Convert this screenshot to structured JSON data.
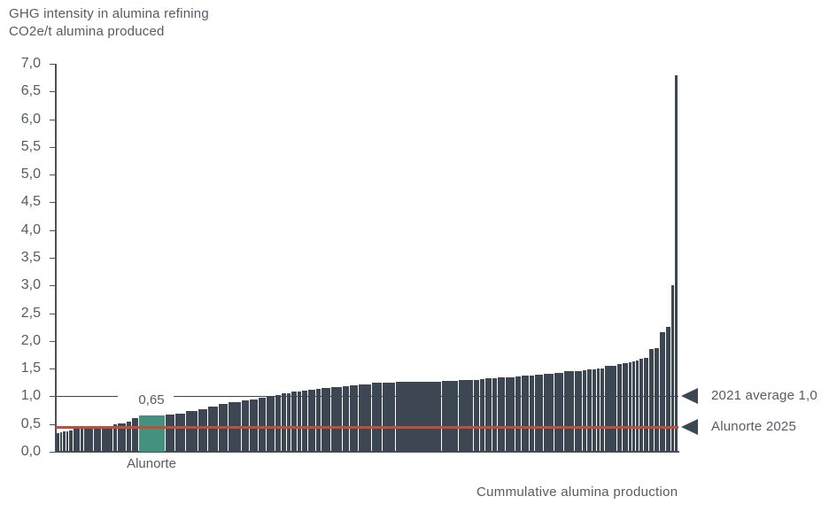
{
  "title": {
    "line1": "GHG intensity in alumina refining",
    "line2": "CO2e/t alumina produced"
  },
  "x_axis_label": "Cummulative alumina production",
  "y_axis": {
    "ticks": [
      "7,0",
      "6,5",
      "6,0",
      "5,5",
      "5,0",
      "4,5",
      "4,0",
      "3,5",
      "3,0",
      "2,5",
      "2,0",
      "1,5",
      "1,0",
      "0,5",
      "0,0"
    ]
  },
  "annotations": {
    "highlight_value_label": "0,65",
    "highlight_name_label": "Alunorte",
    "average_line_label": "2021 average 1,0",
    "alunorte_2025_label": "Alunorte 2025"
  },
  "colors": {
    "bar": "#3d4753",
    "highlight_bar": "#45917f",
    "average_line": "#3d4753",
    "alunorte_2025_line": "#bf4f38",
    "axis": "#4a515b",
    "text": "#565b63"
  },
  "layout_hints": {
    "average_line_label_gap": [
      70,
      133
    ],
    "grid": false,
    "legend_position": "right-annotations"
  },
  "chart_data": {
    "type": "bar",
    "title": "GHG intensity in alumina refining",
    "ylabel": "CO2e/t alumina produced",
    "xlabel": "Cummulative alumina production",
    "ylim": [
      0,
      7
    ],
    "y_tick_step": 0.5,
    "x_axis_meaning": "cumulative alumina production share (bar width = production volume)",
    "reference_lines": [
      {
        "name": "average-line",
        "label": "2021 average 1,0",
        "value": 1.0,
        "color": "#3d4753",
        "thickness": 1.5
      },
      {
        "name": "alunorte-2025-line",
        "label": "Alunorte 2025",
        "value": 0.44,
        "color": "#bf4f38",
        "thickness": 3
      }
    ],
    "highlight": {
      "name": "Alunorte",
      "value": 0.65
    },
    "bars": [
      {
        "w": 4,
        "v": 0.33
      },
      {
        "w": 2,
        "v": 0.35
      },
      {
        "w": 3,
        "v": 0.36
      },
      {
        "w": 2,
        "v": 0.37
      },
      {
        "w": 4,
        "v": 0.39
      },
      {
        "w": 7,
        "v": 0.41
      },
      {
        "w": 3,
        "v": 0.43
      },
      {
        "w": 10,
        "v": 0.45
      },
      {
        "w": 8,
        "v": 0.46
      },
      {
        "w": 12,
        "v": 0.47
      },
      {
        "w": 4,
        "v": 0.49
      },
      {
        "w": 9,
        "v": 0.51
      },
      {
        "w": 5,
        "v": 0.55
      },
      {
        "w": 7,
        "v": 0.6
      },
      {
        "w": 29,
        "v": 0.65,
        "highlight": true
      },
      {
        "w": 10,
        "v": 0.67
      },
      {
        "w": 11,
        "v": 0.69
      },
      {
        "w": 13,
        "v": 0.73
      },
      {
        "w": 10,
        "v": 0.76
      },
      {
        "w": 11,
        "v": 0.82
      },
      {
        "w": 10,
        "v": 0.86
      },
      {
        "w": 14,
        "v": 0.9
      },
      {
        "w": 8,
        "v": 0.93
      },
      {
        "w": 9,
        "v": 0.95
      },
      {
        "w": 8,
        "v": 0.97
      },
      {
        "w": 9,
        "v": 1.0
      },
      {
        "w": 6,
        "v": 1.02
      },
      {
        "w": 5,
        "v": 1.05
      },
      {
        "w": 4,
        "v": 1.06
      },
      {
        "w": 6,
        "v": 1.08
      },
      {
        "w": 4,
        "v": 1.09
      },
      {
        "w": 6,
        "v": 1.1
      },
      {
        "w": 8,
        "v": 1.12
      },
      {
        "w": 5,
        "v": 1.13
      },
      {
        "w": 10,
        "v": 1.15
      },
      {
        "w": 12,
        "v": 1.17
      },
      {
        "w": 7,
        "v": 1.18
      },
      {
        "w": 9,
        "v": 1.2
      },
      {
        "w": 14,
        "v": 1.22
      },
      {
        "w": 11,
        "v": 1.24
      },
      {
        "w": 14,
        "v": 1.25
      },
      {
        "w": 51,
        "v": 1.27
      },
      {
        "w": 18,
        "v": 1.28
      },
      {
        "w": 16,
        "v": 1.29
      },
      {
        "w": 6,
        "v": 1.3
      },
      {
        "w": 5,
        "v": 1.31
      },
      {
        "w": 7,
        "v": 1.32
      },
      {
        "w": 5,
        "v": 1.33
      },
      {
        "w": 8,
        "v": 1.34
      },
      {
        "w": 10,
        "v": 1.35
      },
      {
        "w": 6,
        "v": 1.36
      },
      {
        "w": 8,
        "v": 1.37
      },
      {
        "w": 5,
        "v": 1.38
      },
      {
        "w": 9,
        "v": 1.39
      },
      {
        "w": 11,
        "v": 1.41
      },
      {
        "w": 10,
        "v": 1.43
      },
      {
        "w": 11,
        "v": 1.45
      },
      {
        "w": 8,
        "v": 1.46
      },
      {
        "w": 4,
        "v": 1.47
      },
      {
        "w": 5,
        "v": 1.48
      },
      {
        "w": 4,
        "v": 1.49
      },
      {
        "w": 3,
        "v": 1.5
      },
      {
        "w": 4,
        "v": 1.5
      },
      {
        "w": 13,
        "v": 1.55
      },
      {
        "w": 5,
        "v": 1.58
      },
      {
        "w": 6,
        "v": 1.6
      },
      {
        "w": 3,
        "v": 1.62
      },
      {
        "w": 3,
        "v": 1.63
      },
      {
        "w": 3,
        "v": 1.65
      },
      {
        "w": 4,
        "v": 1.68
      },
      {
        "w": 5,
        "v": 1.7
      },
      {
        "w": 5,
        "v": 1.85
      },
      {
        "w": 5,
        "v": 1.87
      },
      {
        "w": 6,
        "v": 2.15
      },
      {
        "w": 5,
        "v": 2.25
      },
      {
        "w": 3,
        "v": 3.0
      },
      {
        "w": 3,
        "v": 6.8
      }
    ]
  }
}
